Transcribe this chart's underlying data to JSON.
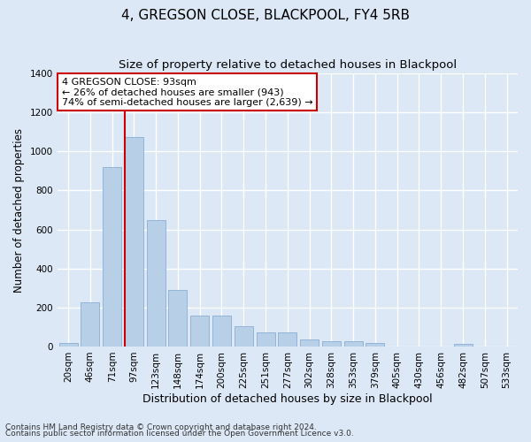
{
  "title": "4, GREGSON CLOSE, BLACKPOOL, FY4 5RB",
  "subtitle": "Size of property relative to detached houses in Blackpool",
  "xlabel": "Distribution of detached houses by size in Blackpool",
  "ylabel": "Number of detached properties",
  "categories": [
    "20sqm",
    "46sqm",
    "71sqm",
    "97sqm",
    "123sqm",
    "148sqm",
    "174sqm",
    "200sqm",
    "225sqm",
    "251sqm",
    "277sqm",
    "302sqm",
    "328sqm",
    "353sqm",
    "379sqm",
    "405sqm",
    "430sqm",
    "456sqm",
    "482sqm",
    "507sqm",
    "533sqm"
  ],
  "values": [
    18,
    225,
    920,
    1075,
    650,
    290,
    158,
    158,
    105,
    72,
    72,
    38,
    28,
    28,
    18,
    0,
    0,
    0,
    12,
    0,
    0
  ],
  "bar_color": "#b8cfe8",
  "bar_edge_color": "#8aaed4",
  "vline_bar_index": 3,
  "vline_color": "#cc0000",
  "annotation_text": "4 GREGSON CLOSE: 93sqm\n← 26% of detached houses are smaller (943)\n74% of semi-detached houses are larger (2,639) →",
  "annotation_box_color": "#ffffff",
  "annotation_box_edge": "#cc0000",
  "ylim": [
    0,
    1400
  ],
  "yticks": [
    0,
    200,
    400,
    600,
    800,
    1000,
    1200,
    1400
  ],
  "background_color": "#dce8f5",
  "grid_color": "#ffffff",
  "footer_line1": "Contains HM Land Registry data © Crown copyright and database right 2024.",
  "footer_line2": "Contains public sector information licensed under the Open Government Licence v3.0.",
  "title_fontsize": 11,
  "subtitle_fontsize": 9.5,
  "xlabel_fontsize": 9,
  "ylabel_fontsize": 8.5,
  "tick_fontsize": 7.5,
  "annotation_fontsize": 8,
  "footer_fontsize": 6.5
}
